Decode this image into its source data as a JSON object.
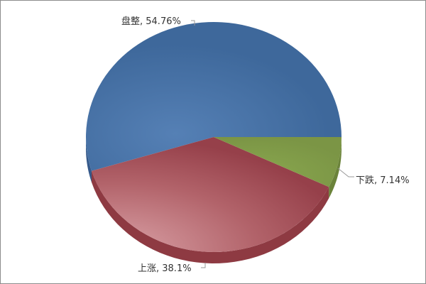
{
  "chart_data": {
    "type": "pie",
    "style": "3d",
    "slices": [
      {
        "label": "盘整",
        "value": 54.76,
        "display": "盘整, 54.76%",
        "color": "#406b9e"
      },
      {
        "label": "上涨",
        "value": 38.1,
        "display": "上涨, 38.1%",
        "color": "#a8474c"
      },
      {
        "label": "下跌",
        "value": 7.14,
        "display": "下跌, 7.14%",
        "color": "#819d49"
      }
    ],
    "start_angle": "3 o'clock",
    "direction": "counterclockwise"
  }
}
